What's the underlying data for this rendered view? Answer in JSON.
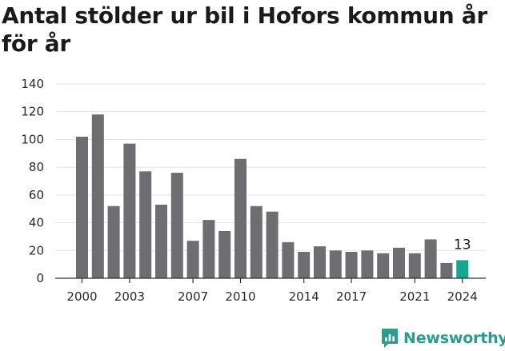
{
  "title": "Antal stölder ur bil i Hofors kommun år för år",
  "brand": {
    "name": "Newsworthy",
    "icon": "newsworthy-logo-icon",
    "color": "#2a9d8f"
  },
  "chart_data": {
    "type": "bar",
    "title": "Antal stölder ur bil i Hofors kommun år för år",
    "xlabel": "",
    "ylabel": "",
    "categories": [
      2000,
      2001,
      2002,
      2003,
      2004,
      2005,
      2006,
      2007,
      2008,
      2009,
      2010,
      2011,
      2012,
      2013,
      2014,
      2015,
      2016,
      2017,
      2018,
      2019,
      2020,
      2021,
      2022,
      2023,
      2024
    ],
    "values": [
      102,
      118,
      52,
      97,
      77,
      53,
      76,
      27,
      42,
      34,
      86,
      52,
      48,
      26,
      19,
      23,
      20,
      19,
      20,
      18,
      22,
      18,
      28,
      11,
      13
    ],
    "x_tick_labels": [
      "2000",
      "2003",
      "2007",
      "2010",
      "2014",
      "2017",
      "2021",
      "2024"
    ],
    "ylim": [
      0,
      140
    ],
    "y_ticks": [
      0,
      20,
      40,
      60,
      80,
      100,
      120,
      140
    ],
    "grid": true,
    "bar_color": "#6e6d72",
    "highlight_color": "#1aa592",
    "highlight_category": 2024,
    "data_labels": [
      {
        "category": 2024,
        "text": "13"
      }
    ]
  }
}
